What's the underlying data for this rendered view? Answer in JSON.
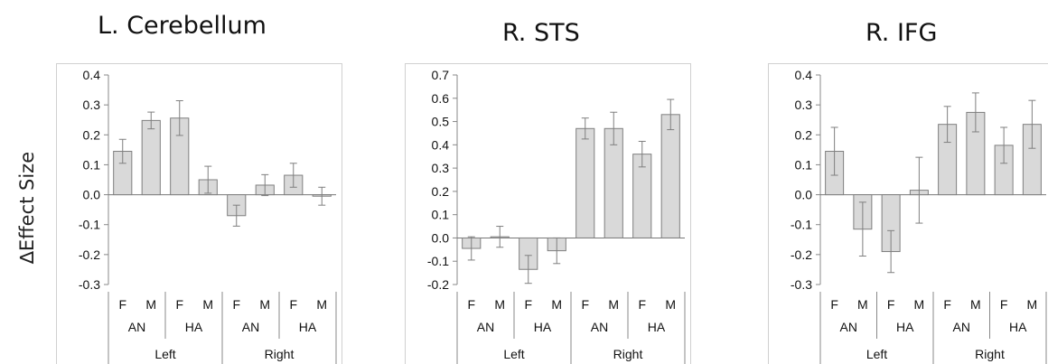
{
  "y_axis_label": "∆Effect Size",
  "chart_data": [
    {
      "type": "bar",
      "title": "L. Cerebellum",
      "ylabel": "∆Effect Size",
      "ylim": [
        -0.3,
        0.4
      ],
      "yticks": [
        "0.4",
        "0.3",
        "0.2",
        "0.1",
        "0.0",
        "-0.1",
        "-0.2",
        "-0.3"
      ],
      "categories": [
        "F",
        "M",
        "F",
        "M",
        "F",
        "M",
        "F",
        "M"
      ],
      "groups_level2": [
        "AN",
        "HA",
        "AN",
        "HA"
      ],
      "groups_level1": [
        "Left",
        "Right"
      ],
      "values": [
        0.145,
        0.248,
        0.256,
        0.05,
        -0.07,
        0.032,
        0.065,
        -0.005
      ],
      "errors": [
        0.04,
        0.028,
        0.058,
        0.045,
        0.035,
        0.035,
        0.04,
        0.03
      ]
    },
    {
      "type": "bar",
      "title": "R. STS",
      "ylabel": "",
      "ylim": [
        -0.2,
        0.7
      ],
      "yticks": [
        "0.7",
        "0.6",
        "0.5",
        "0.4",
        "0.3",
        "0.2",
        "0.1",
        "0.0",
        "-0.1",
        "-0.2"
      ],
      "categories": [
        "F",
        "M",
        "F",
        "M",
        "F",
        "M",
        "F",
        "M"
      ],
      "groups_level2": [
        "AN",
        "HA",
        "AN",
        "HA"
      ],
      "groups_level1": [
        "Left",
        "Right"
      ],
      "values": [
        -0.045,
        0.005,
        -0.135,
        -0.055,
        0.47,
        0.47,
        0.36,
        0.53
      ],
      "errors": [
        0.05,
        0.045,
        0.06,
        0.055,
        0.045,
        0.07,
        0.055,
        0.065
      ]
    },
    {
      "type": "bar",
      "title": "R. IFG",
      "ylabel": "",
      "ylim": [
        -0.3,
        0.4
      ],
      "yticks": [
        "0.4",
        "0.3",
        "0.2",
        "0.1",
        "0.0",
        "-0.1",
        "-0.2",
        "-0.3"
      ],
      "categories": [
        "F",
        "M",
        "F",
        "M",
        "F",
        "M",
        "F",
        "M"
      ],
      "groups_level2": [
        "AN",
        "HA",
        "AN",
        "HA"
      ],
      "groups_level1": [
        "Left",
        "Right"
      ],
      "values": [
        0.145,
        -0.115,
        -0.19,
        0.015,
        0.235,
        0.275,
        0.165,
        0.235
      ],
      "errors": [
        0.08,
        0.09,
        0.07,
        0.11,
        0.06,
        0.065,
        0.06,
        0.08
      ]
    }
  ]
}
